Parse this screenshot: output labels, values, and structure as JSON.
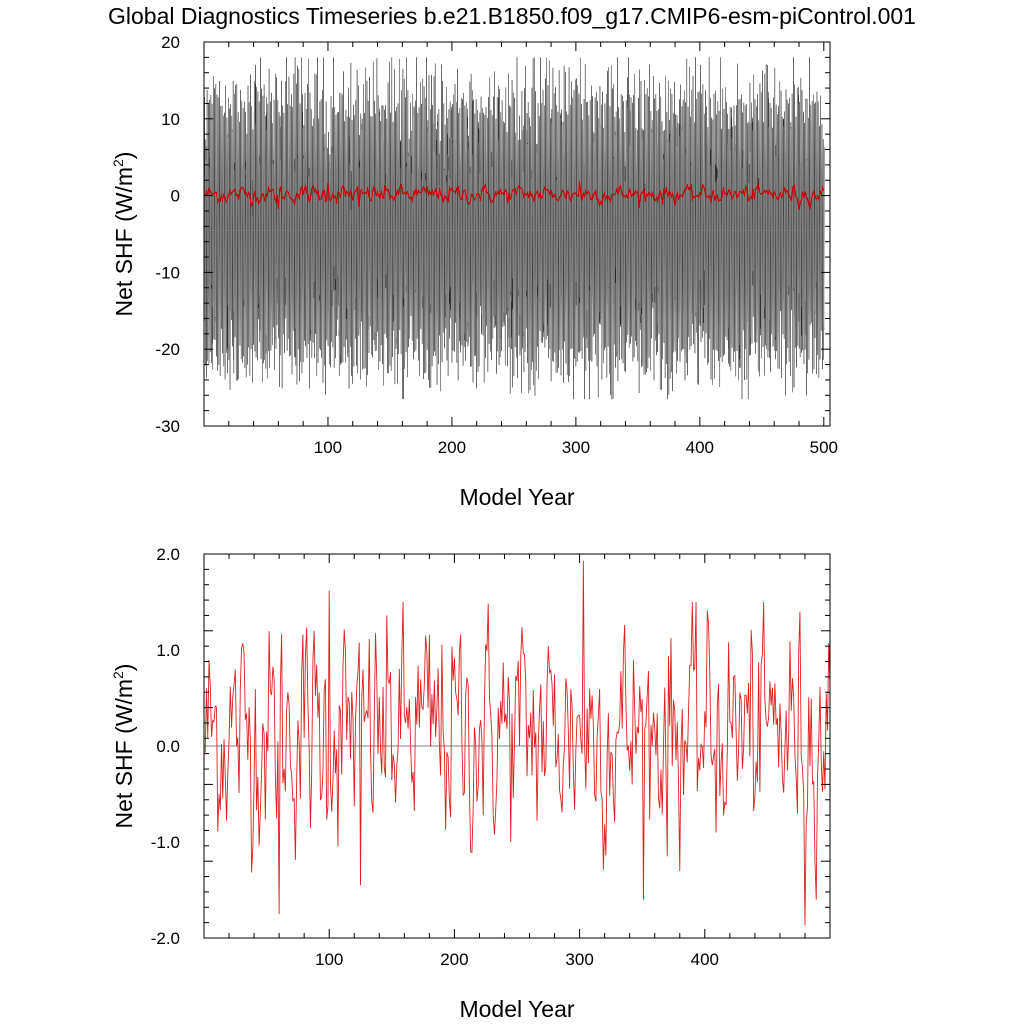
{
  "title": "Global Diagnostics Timeseries b.e21.B1850.f09_g17.CMIP6-esm-piControl.001",
  "chart_data": [
    {
      "type": "line",
      "xlabel": "Model Year",
      "ylabel_main": "Net SHF (W/m",
      "ylabel_sup": "2",
      "ylabel_close": ")",
      "xlim": [
        0,
        505
      ],
      "ylim": [
        -30,
        20
      ],
      "xticks": [
        100,
        200,
        300,
        400,
        500
      ],
      "yticks": [
        -30,
        -20,
        -10,
        0,
        10,
        20
      ],
      "yticks_labels": [
        "-30",
        "-20",
        "-10",
        "0",
        "10",
        "20"
      ],
      "series": [
        {
          "kind": "monthly",
          "color": "#111111",
          "envelope_upper": 13,
          "envelope_lower": -22,
          "peak_max": 18,
          "trough_min": -26.5
        },
        {
          "kind": "annual",
          "color": "#cc0000",
          "amplitude": 1.0
        }
      ]
    },
    {
      "type": "line",
      "xlabel": "Model Year",
      "ylabel_main": "Net SHF (W/m",
      "ylabel_sup": "2",
      "ylabel_close": ")",
      "xlim": [
        0,
        500
      ],
      "ylim": [
        -2.0,
        2.0
      ],
      "xticks": [
        100,
        200,
        300,
        400
      ],
      "yticks": [
        -2.0,
        -1.0,
        0.0,
        1.0,
        2.0
      ],
      "yticks_labels": [
        "-2.0",
        "-1.0",
        "0.0",
        "1.0",
        "2.0"
      ],
      "reference_line": 0.0,
      "series": [
        {
          "kind": "annual",
          "color": "#e02020",
          "mean": 0.15,
          "std": 0.6,
          "highlights": [
            [
              60,
              -1.75
            ],
            [
              100,
              1.62
            ],
            [
              125,
              -1.45
            ],
            [
              303,
              1.93
            ],
            [
              480,
              -1.87
            ]
          ]
        }
      ]
    }
  ]
}
